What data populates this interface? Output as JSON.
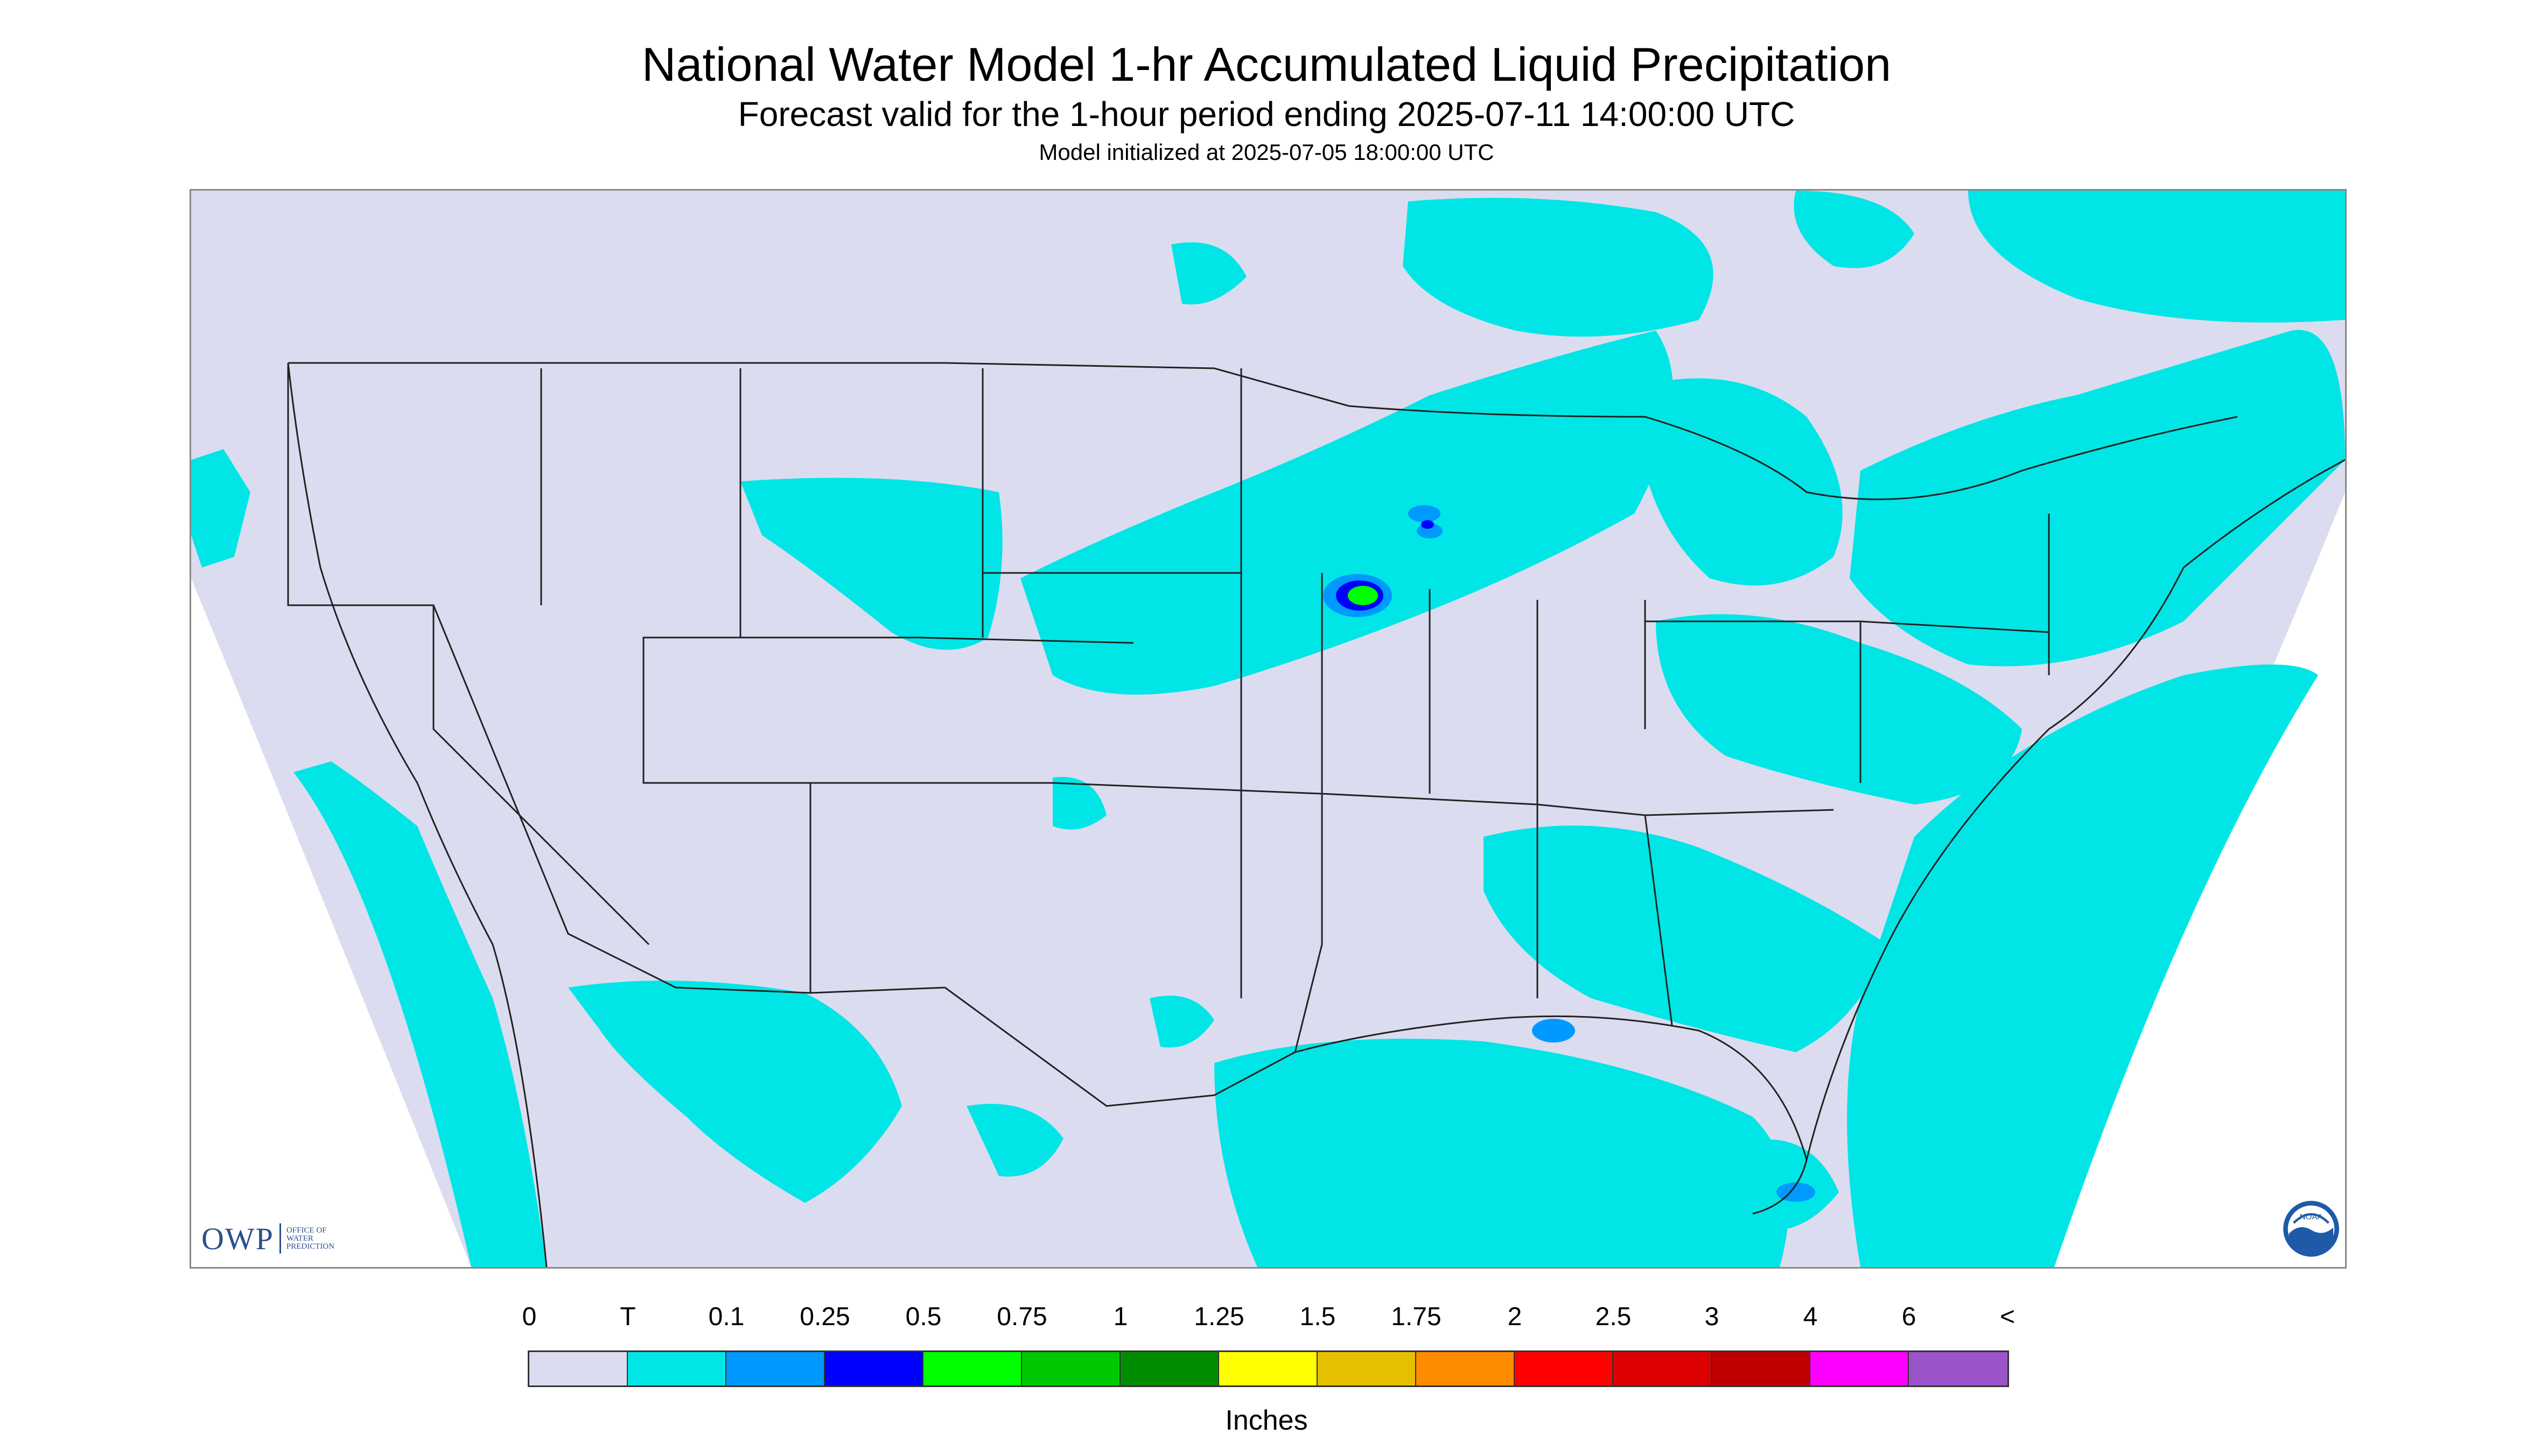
{
  "header": {
    "title": "National Water Model 1-hr Accumulated Liquid Precipitation",
    "subtitle": "Forecast valid for the 1-hour period ending 2025-07-11 14:00:00 UTC",
    "init": "Model initialized at 2025-07-05 18:00:00 UTC"
  },
  "logos": {
    "owp_text": "OWP",
    "owp_sub": "OFFICE OF WATER PREDICTION",
    "noaa_text": "NOAA"
  },
  "legend": {
    "labels": [
      "0",
      "T",
      "0.1",
      "0.25",
      "0.5",
      "0.75",
      "1",
      "1.25",
      "1.5",
      "1.75",
      "2",
      "2.5",
      "3",
      "4",
      "6",
      "<"
    ],
    "colors": [
      "#dcdcf0",
      "#00e6e6",
      "#0099ff",
      "#0000ff",
      "#00ff00",
      "#00c800",
      "#008c00",
      "#ffff00",
      "#e6c000",
      "#ff8c00",
      "#ff0000",
      "#dc0000",
      "#be0000",
      "#ff00ff",
      "#9b55c8"
    ],
    "units": "Inches"
  },
  "colors": {
    "background": "#dcdcf0",
    "trace": "#00e6e6",
    "light": "#0099ff",
    "moderate": "#0000ff",
    "heavy": "#00ff00",
    "boundary": "#222222"
  }
}
